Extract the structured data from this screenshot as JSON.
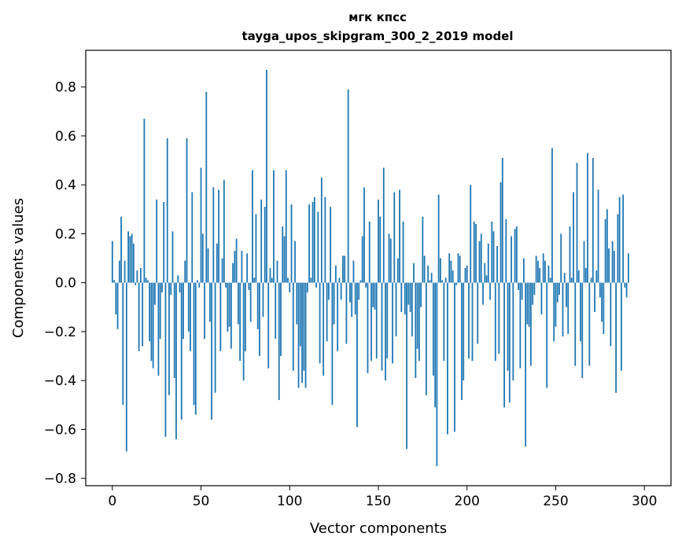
{
  "colors": {
    "bar": "#1f77b4",
    "axis": "#000000",
    "background": "#ffffff"
  },
  "chart_data": {
    "type": "bar",
    "title": "мгк кпсс",
    "subtitle": "tayga_upos_skipgram_300_2_2019 model",
    "xlabel": "Vector components",
    "ylabel": "Components values",
    "xlim": [
      -15,
      315
    ],
    "ylim": [
      -0.83,
      0.95
    ],
    "xticks": [
      0,
      50,
      100,
      150,
      200,
      250,
      300
    ],
    "xtick_labels": [
      "0",
      "50",
      "100",
      "150",
      "200",
      "250",
      "300"
    ],
    "yticks": [
      -0.8,
      -0.6,
      -0.4,
      -0.2,
      0.0,
      0.2,
      0.4,
      0.6,
      0.8
    ],
    "ytick_labels": [
      "−0.8",
      "−0.6",
      "−0.4",
      "−0.2",
      "0.0",
      "0.2",
      "0.4",
      "0.6",
      "0.8"
    ],
    "grid": false,
    "values": [
      0.17,
      0.01,
      -0.13,
      -0.19,
      0.09,
      0.27,
      -0.5,
      0.09,
      -0.69,
      0.21,
      0.19,
      0.2,
      0.16,
      -0.01,
      0.05,
      -0.28,
      0.06,
      -0.26,
      0.67,
      0.02,
      0.01,
      -0.24,
      -0.32,
      -0.35,
      -0.09,
      0.34,
      -0.38,
      -0.23,
      -0.04,
      0.33,
      -0.63,
      0.59,
      -0.46,
      -0.05,
      0.21,
      -0.39,
      -0.64,
      0.03,
      -0.04,
      -0.56,
      -0.23,
      0.09,
      0.59,
      -0.2,
      -0.28,
      0.37,
      -0.5,
      -0.54,
      0.01,
      -0.02,
      0.47,
      0.2,
      -0.23,
      0.78,
      0.14,
      -0.16,
      -0.56,
      0.39,
      -0.45,
      0.16,
      0.38,
      -0.28,
      0.1,
      0.42,
      -0.02,
      -0.2,
      -0.18,
      -0.27,
      0.08,
      0.13,
      0.18,
      -0.17,
      -0.32,
      0.13,
      -0.4,
      -0.28,
      0.12,
      -0.03,
      -0.16,
      0.46,
      0.02,
      0.28,
      -0.19,
      -0.3,
      0.34,
      -0.14,
      0.31,
      0.87,
      -0.35,
      0.06,
      0.02,
      0.46,
      -0.23,
      0.09,
      -0.48,
      -0.3,
      0.23,
      0.19,
      0.46,
      0.02,
      -0.04,
      0.32,
      -0.36,
      0.17,
      -0.17,
      -0.43,
      -0.26,
      -0.41,
      -0.36,
      -0.43,
      -0.04,
      0.32,
      0.02,
      0.33,
      0.35,
      -0.02,
      0.29,
      -0.33,
      0.43,
      -0.38,
      0.35,
      -0.24,
      -0.07,
      0.31,
      -0.5,
      -0.17,
      0.07,
      -0.28,
      0.02,
      -0.07,
      0.11,
      0.11,
      -0.25,
      0.79,
      -0.08,
      -0.14,
      0.09,
      -0.13,
      -0.59,
      -0.07,
      0.01,
      0.19,
      0.39,
      -0.02,
      -0.37,
      0.25,
      -0.32,
      -0.1,
      -0.11,
      -0.31,
      0.34,
      0.27,
      -0.36,
      0.47,
      -0.4,
      -0.31,
      0.2,
      0.18,
      -0.33,
      0.37,
      -0.22,
      0.1,
      0.38,
      -0.12,
      0.25,
      -0.13,
      -0.68,
      -0.09,
      -0.12,
      -0.22,
      0.08,
      -0.39,
      -0.27,
      -0.32,
      -0.1,
      0.27,
      0.11,
      -0.46,
      0.07,
      0.01,
      0.04,
      -0.38,
      -0.51,
      -0.75,
      0.36,
      0.1,
      0.01,
      -0.32,
      0.02,
      -0.62,
      0.12,
      0.09,
      0.05,
      -0.61,
      -0.01,
      0.12,
      0.11,
      -0.48,
      -0.4,
      0.06,
      0.07,
      -0.31,
      0.4,
      -0.32,
      0.25,
      0.24,
      -0.25,
      0.17,
      0.2,
      -0.09,
      0.08,
      0.03,
      0.16,
      -0.07,
      0.25,
      0.21,
      -0.32,
      0.15,
      -0.29,
      0.41,
      0.51,
      -0.51,
      0.26,
      -0.36,
      -0.49,
      0.19,
      -0.4,
      0.22,
      0.23,
      -0.03,
      -0.35,
      -0.07,
      0.1,
      -0.67,
      -0.17,
      -0.18,
      -0.34,
      -0.09,
      -0.05,
      0.11,
      0.09,
      0.06,
      -0.13,
      0.12,
      0.09,
      -0.43,
      0.07,
      0.02,
      0.55,
      -0.24,
      -0.18,
      -0.08,
      -0.05,
      0.2,
      -0.22,
      0.04,
      -0.1,
      -0.21,
      0.23,
      0.02,
      0.37,
      -0.34,
      0.49,
      0.05,
      -0.24,
      -0.39,
      0.17,
      0.06,
      0.53,
      -0.34,
      0.02,
      0.51,
      -0.12,
      0.05,
      0.38,
      -0.06,
      -0.16,
      -0.21,
      0.26,
      0.3,
      0.14,
      -0.26,
      0.17,
      0.13,
      -0.45,
      0.28,
      0.35,
      -0.36,
      0.36,
      -0.02,
      -0.06,
      0.12
    ]
  }
}
